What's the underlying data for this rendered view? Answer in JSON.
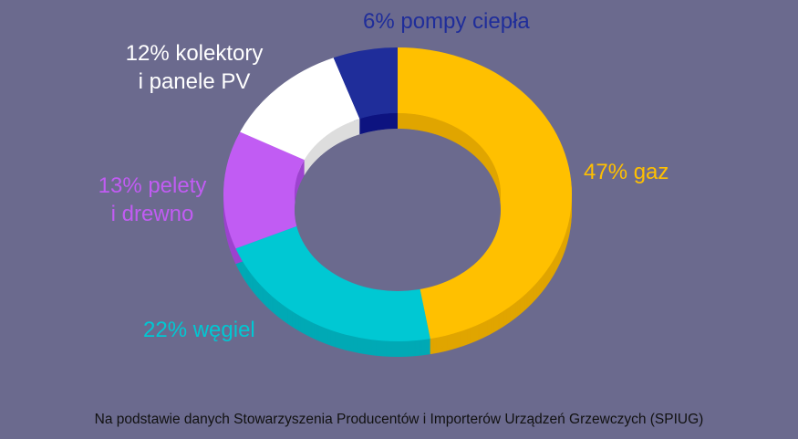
{
  "chart_data": {
    "type": "pie",
    "style": "3d-donut",
    "slices": [
      {
        "label_lines": [
          "47% gaz"
        ],
        "value": 47,
        "color": "#ffc000",
        "side": "#e0a500"
      },
      {
        "label_lines": [
          "22% węgiel"
        ],
        "value": 22,
        "color": "#00c8d3",
        "side": "#00a9b5"
      },
      {
        "label_lines": [
          "13% pelety",
          "i drewno"
        ],
        "value": 13,
        "color": "#c15cf3",
        "side": "#9d43cf"
      },
      {
        "label_lines": [
          "12% kolektory",
          "i panele PV"
        ],
        "value": 12,
        "color": "#ffffff",
        "side": "#dddddd"
      },
      {
        "label_lines": [
          "6% pompy ciepła"
        ],
        "value": 6,
        "color": "#1f2d9a",
        "side": "#0d1380"
      }
    ]
  },
  "source_note": "Na podstawie danych Stowarzyszenia Producentów i Importerów Urządzeń Grzewczych (SPIUG)"
}
